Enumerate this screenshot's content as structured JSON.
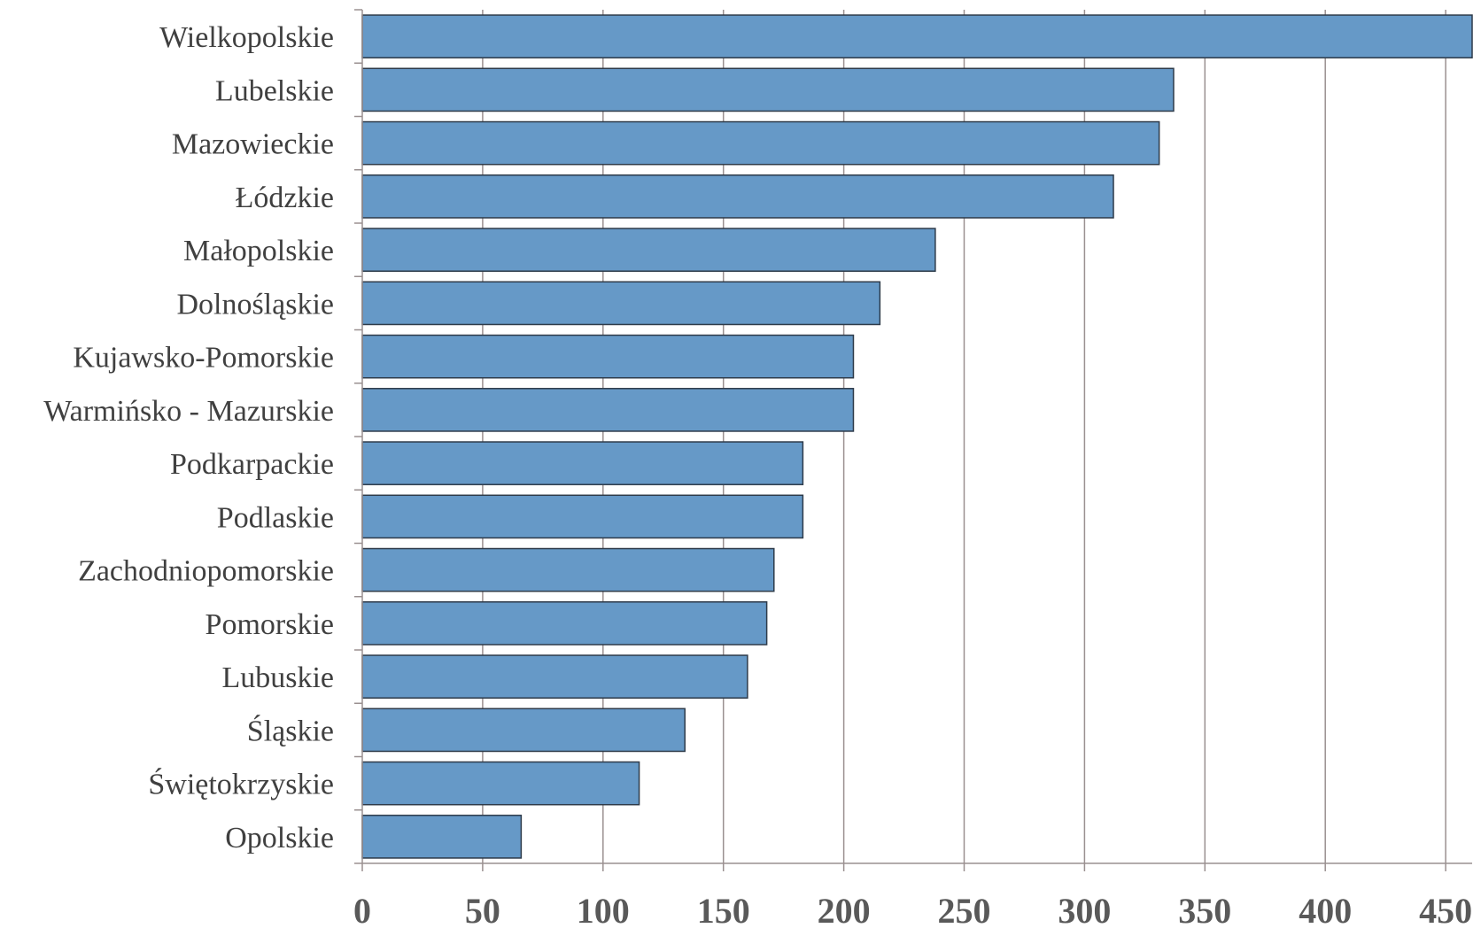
{
  "chart_data": {
    "type": "bar",
    "orientation": "horizontal",
    "title": "",
    "xlabel": "",
    "ylabel": "",
    "categories": [
      "Wielkopolskie",
      "Lubelskie",
      "Mazowieckie",
      "Łódzkie",
      "Małopolskie",
      "Dolnośląskie",
      "Kujawsko-Pomorskie",
      "Warmińsko - Mazurskie",
      "Podkarpackie",
      "Podlaskie",
      "Zachodniopomorskie",
      "Pomorskie",
      "Lubuskie",
      "Śląskie",
      "Świętokrzyskie",
      "Opolskie"
    ],
    "values": [
      461,
      337,
      331,
      312,
      238,
      215,
      204,
      204,
      183,
      183,
      171,
      168,
      160,
      134,
      115,
      66
    ],
    "xlim": [
      0,
      461
    ],
    "xticks": [
      0,
      50,
      100,
      150,
      200,
      250,
      300,
      350,
      400,
      450
    ],
    "xtick_labels": [
      "0",
      "50",
      "100",
      "150",
      "200",
      "250",
      "300",
      "350",
      "400",
      "450"
    ],
    "grid": "vertical",
    "legend": "none",
    "colors": {
      "bar_fill": "#6699c7",
      "bar_stroke": "#2e3b4a",
      "grid": "#9a9090",
      "category_text": "#404040",
      "tick_text": "#595959"
    }
  }
}
